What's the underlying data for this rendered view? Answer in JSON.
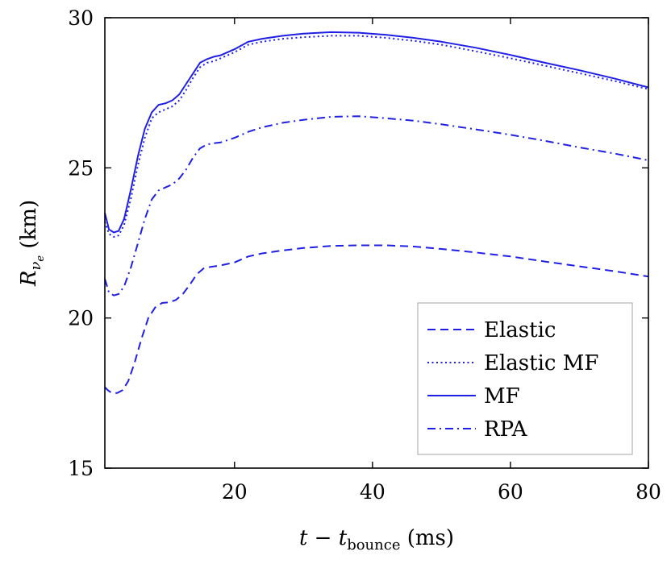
{
  "chart_data": {
    "type": "line",
    "xlabel_main": "t − t",
    "xlabel_sub": "bounce",
    "xlabel_unit": " (ms)",
    "ylabel_main": "R",
    "ylabel_sub": "ν",
    "ylabel_subsub": "e",
    "ylabel_unit": " (km)",
    "xlim": [
      1.2,
      80
    ],
    "ylim": [
      15,
      30
    ],
    "xticks": [
      20,
      40,
      60,
      80
    ],
    "yticks": [
      15,
      20,
      25,
      30
    ],
    "grid": false,
    "legend_position": "bottom-right",
    "line_color": "#1f1fe6",
    "series": [
      {
        "name": "Elastic",
        "style": "dashed",
        "x": [
          1.2,
          1.6,
          2.2,
          3,
          3.8,
          4.6,
          5.5,
          6.5,
          7.5,
          8.5,
          9.5,
          10.5,
          11.5,
          12.5,
          13.5,
          14.5,
          15.5,
          16.5,
          18,
          20,
          22,
          24,
          27,
          30,
          34,
          38,
          42,
          46,
          50,
          55,
          60,
          65,
          70,
          75,
          80
        ],
        "y": [
          17.7,
          17.6,
          17.5,
          17.5,
          17.6,
          17.9,
          18.5,
          19.3,
          20.0,
          20.35,
          20.5,
          20.52,
          20.6,
          20.8,
          21.1,
          21.45,
          21.65,
          21.7,
          21.75,
          21.85,
          22.05,
          22.15,
          22.25,
          22.33,
          22.4,
          22.42,
          22.42,
          22.38,
          22.3,
          22.18,
          22.05,
          21.88,
          21.72,
          21.56,
          21.38
        ]
      },
      {
        "name": "Elastic MF",
        "style": "dotted",
        "x": [
          1.2,
          1.8,
          2.5,
          3.2,
          4,
          5,
          6,
          7,
          8,
          9,
          10,
          11,
          12,
          13,
          14,
          15,
          16,
          17,
          18,
          20,
          22,
          24,
          27,
          30,
          34,
          38,
          42,
          46,
          50,
          55,
          60,
          65,
          70,
          75,
          80
        ],
        "y": [
          23.2,
          22.8,
          22.7,
          22.75,
          23.1,
          24.0,
          25.1,
          26.0,
          26.65,
          26.85,
          26.95,
          27.05,
          27.25,
          27.6,
          28.0,
          28.35,
          28.5,
          28.55,
          28.65,
          28.85,
          29.1,
          29.2,
          29.3,
          29.35,
          29.4,
          29.4,
          29.33,
          29.23,
          29.1,
          28.88,
          28.65,
          28.4,
          28.15,
          27.9,
          27.62
        ]
      },
      {
        "name": "MF",
        "style": "solid",
        "x": [
          1.2,
          1.8,
          2.5,
          3.2,
          4,
          5,
          6,
          7,
          8,
          9,
          10,
          11,
          12,
          13,
          14,
          15,
          16,
          17,
          18,
          20,
          22,
          24,
          27,
          30,
          34,
          38,
          42,
          46,
          50,
          55,
          60,
          65,
          70,
          75,
          80
        ],
        "y": [
          23.5,
          22.95,
          22.85,
          22.9,
          23.3,
          24.3,
          25.4,
          26.3,
          26.85,
          27.1,
          27.15,
          27.25,
          27.45,
          27.8,
          28.15,
          28.5,
          28.62,
          28.7,
          28.75,
          28.95,
          29.2,
          29.3,
          29.4,
          29.47,
          29.52,
          29.5,
          29.43,
          29.33,
          29.2,
          29.0,
          28.76,
          28.5,
          28.25,
          27.98,
          27.68
        ]
      },
      {
        "name": "RPA",
        "style": "dashdot",
        "x": [
          1.2,
          1.8,
          2.5,
          3.2,
          4,
          5,
          6,
          7,
          8,
          9,
          10,
          11,
          12,
          13,
          14,
          15,
          16,
          17,
          18,
          20,
          22,
          24,
          27,
          30,
          34,
          38,
          42,
          46,
          50,
          55,
          60,
          65,
          70,
          75,
          80
        ],
        "y": [
          21.3,
          20.85,
          20.75,
          20.8,
          21.05,
          21.7,
          22.5,
          23.3,
          23.95,
          24.25,
          24.35,
          24.45,
          24.65,
          24.95,
          25.35,
          25.65,
          25.78,
          25.82,
          25.85,
          26.0,
          26.2,
          26.35,
          26.5,
          26.6,
          26.7,
          26.72,
          26.65,
          26.57,
          26.45,
          26.28,
          26.1,
          25.9,
          25.68,
          25.48,
          25.25
        ]
      }
    ]
  }
}
